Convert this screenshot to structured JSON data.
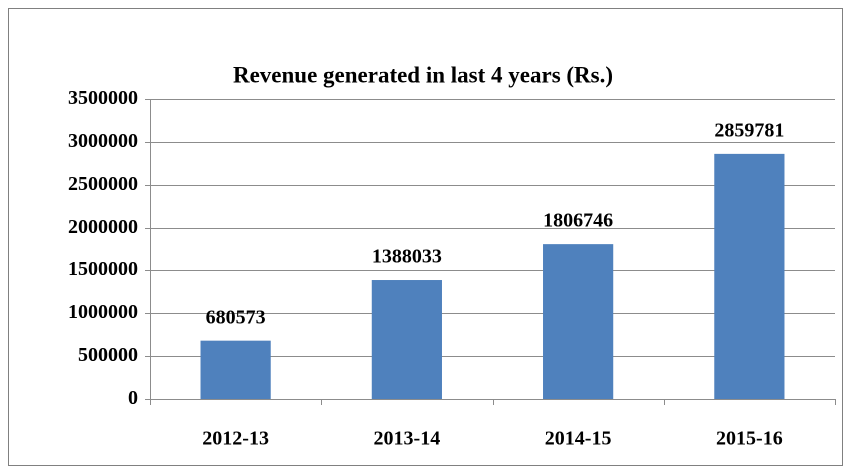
{
  "chart_data": {
    "type": "bar",
    "title": "Revenue generated in last 4 years (Rs.)",
    "categories": [
      "2012-13",
      "2013-14",
      "2014-15",
      "2015-16"
    ],
    "values": [
      680573,
      1388033,
      1806746,
      2859781
    ],
    "color": "#4f81bd",
    "ylim": [
      0,
      3500000
    ],
    "yticks": [
      0,
      500000,
      1000000,
      1500000,
      2000000,
      2500000,
      3000000,
      3500000
    ],
    "grid": true,
    "data_labels": true
  }
}
